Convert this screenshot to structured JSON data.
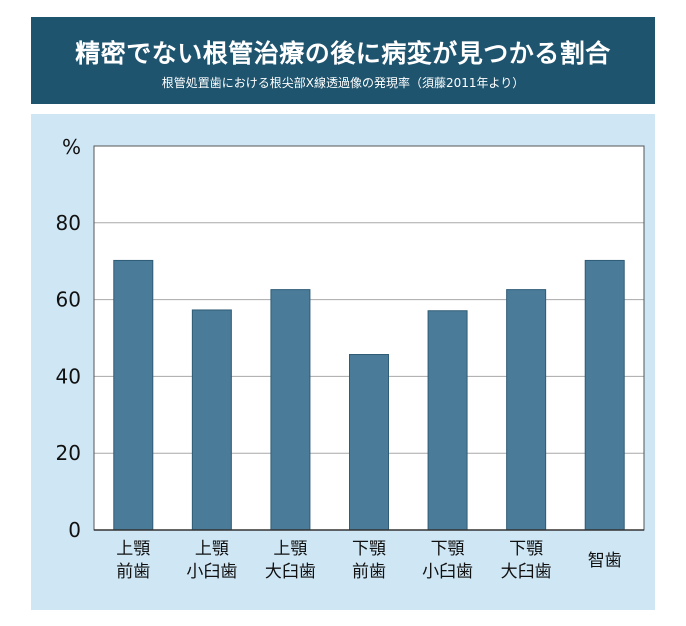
{
  "header": {
    "title": "精密でない根管治療の後に病変が見つかる割合",
    "subtitle": "根管処置歯における根尖部X線透過像の発現率（須藤2011年より）"
  },
  "chart_data": {
    "type": "bar",
    "ylabel": "%",
    "ylim": [
      0,
      100
    ],
    "yticks": [
      0,
      20,
      40,
      60,
      80
    ],
    "grid": true,
    "categories": [
      [
        "上顎",
        "前歯"
      ],
      [
        "上顎",
        "小臼歯"
      ],
      [
        "上顎",
        "大臼歯"
      ],
      [
        "下顎",
        "前歯"
      ],
      [
        "下顎",
        "小臼歯"
      ],
      [
        "下顎",
        "大臼歯"
      ],
      [
        "智歯"
      ]
    ],
    "values": [
      70.2,
      57.3,
      62.6,
      45.7,
      57.1,
      62.6,
      70.2
    ],
    "colors": {
      "bar": "#4a7b98",
      "bar_edge": "#2f5c76",
      "plot_bg": "#ffffff",
      "panel_bg": "#cfe7f5",
      "title_bg": "#1f546f"
    }
  }
}
